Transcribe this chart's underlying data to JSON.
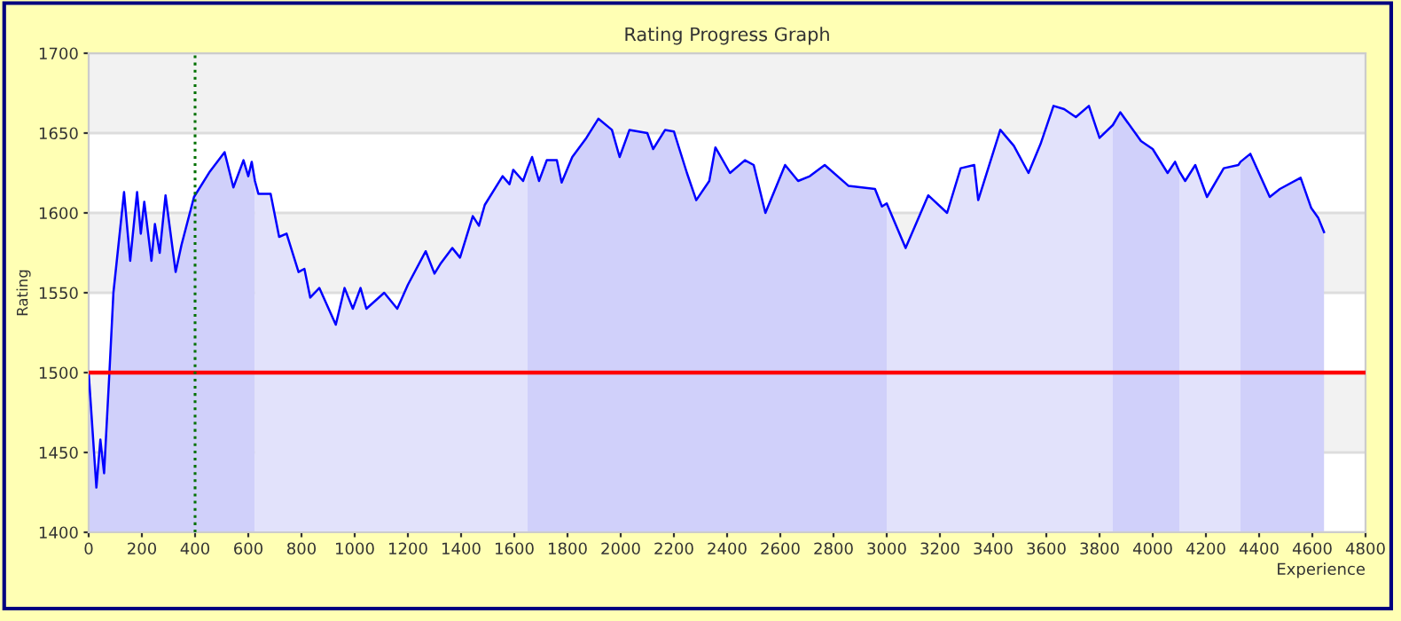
{
  "chart_data": {
    "type": "line",
    "title": "Rating Progress Graph",
    "xlabel": "Experience",
    "ylabel": "Rating",
    "xlim": [
      0,
      4800
    ],
    "xticks": [
      0,
      200,
      400,
      600,
      800,
      1000,
      1200,
      1400,
      1600,
      1800,
      2000,
      2200,
      2400,
      2600,
      2800,
      3000,
      3200,
      3400,
      3600,
      3800,
      4000,
      4200,
      4400,
      4600,
      4800
    ],
    "ylim": [
      1400,
      1700
    ],
    "yticks": [
      1400,
      1450,
      1500,
      1550,
      1600,
      1650,
      1700
    ],
    "grid": "y",
    "legend": false,
    "marker": "none",
    "line_style": "solid",
    "bands": [
      {
        "axis": "y",
        "from": 1450,
        "to": 1500,
        "color": "#f2f2f2"
      },
      {
        "axis": "y",
        "from": 1550,
        "to": 1600,
        "color": "#f2f2f2"
      },
      {
        "axis": "y",
        "from": 1650,
        "to": 1700,
        "color": "#f2f2f2"
      }
    ],
    "ref_lines": [
      {
        "axis": "y",
        "value": 1500,
        "color": "#ff0000",
        "line_style": "solid"
      },
      {
        "axis": "x",
        "value": 400,
        "color": "#007000",
        "line_style": "dotted"
      }
    ],
    "series": [
      {
        "type": "area",
        "color": "#d0d0fa",
        "x": [
          0,
          29,
          44,
          58,
          78,
          93,
          133,
          156,
          182,
          196,
          209,
          236,
          249,
          267,
          289,
          327,
          349,
          396,
          456,
          511,
          544,
          582,
          600,
          613,
          625
        ],
        "values": [
          1500,
          1428,
          1458,
          1437,
          1500,
          1550,
          1613,
          1570,
          1613,
          1587,
          1607,
          1570,
          1593,
          1575,
          1611,
          1563,
          1580,
          1610,
          1626,
          1638,
          1616,
          1633,
          1623,
          1632,
          1620
        ]
      },
      {
        "type": "area",
        "color": "#e2e2fb",
        "x": [
          625,
          638,
          684,
          716,
          744,
          789,
          811,
          833,
          867,
          929,
          962,
          993,
          1022,
          1044,
          1111,
          1160,
          1200,
          1267,
          1300,
          1322,
          1367,
          1396,
          1444,
          1467,
          1489,
          1556,
          1582,
          1596,
          1633,
          1650
        ],
        "values": [
          1620,
          1612,
          1612,
          1585,
          1587,
          1563,
          1565,
          1547,
          1553,
          1530,
          1553,
          1540,
          1553,
          1540,
          1550,
          1540,
          1555,
          1576,
          1562,
          1568,
          1578,
          1572,
          1598,
          1592,
          1605,
          1623,
          1618,
          1627,
          1620,
          1628
        ]
      },
      {
        "type": "area",
        "color": "#d0d0fa",
        "x": [
          1650,
          1667,
          1693,
          1722,
          1760,
          1778,
          1818,
          1871,
          1916,
          1967,
          1996,
          2033,
          2100,
          2122,
          2167,
          2200,
          2249,
          2284,
          2333,
          2356,
          2411,
          2467,
          2500,
          2544,
          2618,
          2667,
          2711,
          2767,
          2856,
          2956,
          2982,
          3000
        ],
        "values": [
          1628,
          1635,
          1620,
          1633,
          1633,
          1619,
          1635,
          1647,
          1659,
          1652,
          1635,
          1652,
          1650,
          1640,
          1652,
          1651,
          1625,
          1608,
          1620,
          1641,
          1625,
          1633,
          1630,
          1600,
          1630,
          1620,
          1623,
          1630,
          1617,
          1615,
          1604,
          1606
        ]
      },
      {
        "type": "area",
        "color": "#e2e2fb",
        "x": [
          3000,
          3071,
          3156,
          3227,
          3278,
          3329,
          3344,
          3427,
          3478,
          3533,
          3578,
          3627,
          3667,
          3711,
          3760,
          3800,
          3850
        ],
        "values": [
          1606,
          1578,
          1611,
          1600,
          1628,
          1630,
          1608,
          1652,
          1642,
          1625,
          1643,
          1667,
          1665,
          1660,
          1667,
          1647,
          1655
        ]
      },
      {
        "type": "area",
        "color": "#d0d0fa",
        "x": [
          3850,
          3878,
          3956,
          4000,
          4056,
          4084,
          4100
        ],
        "values": [
          1655,
          1663,
          1645,
          1640,
          1625,
          1632,
          1626
        ]
      },
      {
        "type": "area",
        "color": "#e2e2fb",
        "x": [
          4100,
          4122,
          4160,
          4204,
          4267,
          4322,
          4330
        ],
        "values": [
          1626,
          1620,
          1630,
          1610,
          1628,
          1630,
          1632
        ]
      },
      {
        "type": "area",
        "color": "#d0d0fa",
        "x": [
          4330,
          4367,
          4440,
          4478,
          4556,
          4596,
          4622,
          4644
        ],
        "values": [
          1632,
          1637,
          1610,
          1615,
          1622,
          1603,
          1597,
          1588
        ]
      },
      {
        "color": "#0000ff",
        "x": [
          0,
          29,
          44,
          58,
          78,
          93,
          133,
          156,
          182,
          196,
          209,
          236,
          249,
          267,
          289,
          327,
          349,
          396,
          456,
          511,
          544,
          582,
          600,
          613,
          625,
          638,
          684,
          716,
          744,
          789,
          811,
          833,
          867,
          929,
          962,
          993,
          1022,
          1044,
          1111,
          1160,
          1200,
          1267,
          1300,
          1322,
          1367,
          1396,
          1444,
          1467,
          1489,
          1556,
          1582,
          1596,
          1633,
          1650,
          1667,
          1693,
          1722,
          1760,
          1778,
          1818,
          1871,
          1916,
          1967,
          1996,
          2033,
          2100,
          2122,
          2167,
          2200,
          2249,
          2284,
          2333,
          2356,
          2411,
          2467,
          2500,
          2544,
          2618,
          2667,
          2711,
          2767,
          2856,
          2956,
          2982,
          3000,
          3071,
          3156,
          3227,
          3278,
          3329,
          3344,
          3427,
          3478,
          3533,
          3578,
          3627,
          3667,
          3711,
          3760,
          3800,
          3850,
          3878,
          3956,
          4000,
          4056,
          4084,
          4100,
          4122,
          4160,
          4204,
          4267,
          4322,
          4330,
          4367,
          4440,
          4478,
          4556,
          4596,
          4622,
          4644
        ],
        "values": [
          1500,
          1428,
          1458,
          1437,
          1500,
          1550,
          1613,
          1570,
          1613,
          1587,
          1607,
          1570,
          1593,
          1575,
          1611,
          1563,
          1580,
          1610,
          1626,
          1638,
          1616,
          1633,
          1623,
          1632,
          1620,
          1612,
          1612,
          1585,
          1587,
          1563,
          1565,
          1547,
          1553,
          1530,
          1553,
          1540,
          1553,
          1540,
          1550,
          1540,
          1555,
          1576,
          1562,
          1568,
          1578,
          1572,
          1598,
          1592,
          1605,
          1623,
          1618,
          1627,
          1620,
          1628,
          1635,
          1620,
          1633,
          1633,
          1619,
          1635,
          1647,
          1659,
          1652,
          1635,
          1652,
          1650,
          1640,
          1652,
          1651,
          1625,
          1608,
          1620,
          1641,
          1625,
          1633,
          1630,
          1600,
          1630,
          1620,
          1623,
          1630,
          1617,
          1615,
          1604,
          1606,
          1578,
          1611,
          1600,
          1628,
          1630,
          1608,
          1652,
          1642,
          1625,
          1643,
          1667,
          1665,
          1660,
          1667,
          1647,
          1655,
          1663,
          1645,
          1640,
          1625,
          1632,
          1626,
          1620,
          1630,
          1610,
          1628,
          1630,
          1632,
          1637,
          1610,
          1615,
          1622,
          1603,
          1597,
          1588
        ]
      }
    ]
  }
}
